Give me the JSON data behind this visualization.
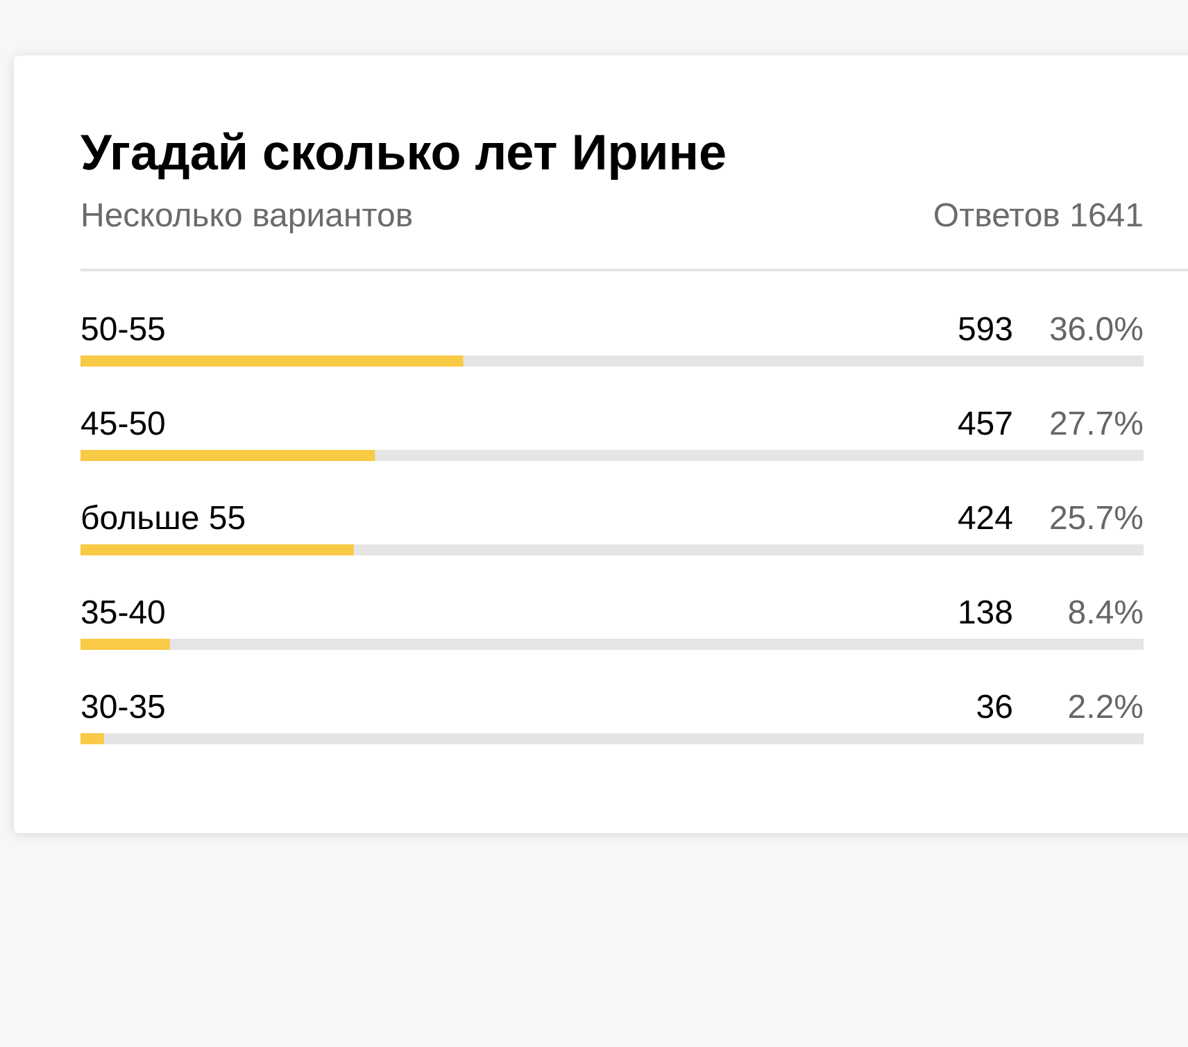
{
  "chart_data": {
    "type": "bar",
    "orientation": "horizontal",
    "title": "Угадай сколько лет Ирине",
    "subtitle": "Несколько вариантов",
    "categories": [
      "50-55",
      "45-50",
      "больше 55",
      "35-40",
      "30-35"
    ],
    "values": [
      36.0,
      27.7,
      25.7,
      8.4,
      2.2
    ],
    "value_labels": [
      "36.0%",
      "27.7%",
      "25.7%",
      "8.4%",
      "2.2%"
    ],
    "color": "#f8ca45",
    "xlim": [
      0,
      100
    ],
    "tick_labels": "y",
    "annotations": [
      "Ответов 1641",
      "593",
      "457",
      "424",
      "138",
      "36"
    ]
  }
}
